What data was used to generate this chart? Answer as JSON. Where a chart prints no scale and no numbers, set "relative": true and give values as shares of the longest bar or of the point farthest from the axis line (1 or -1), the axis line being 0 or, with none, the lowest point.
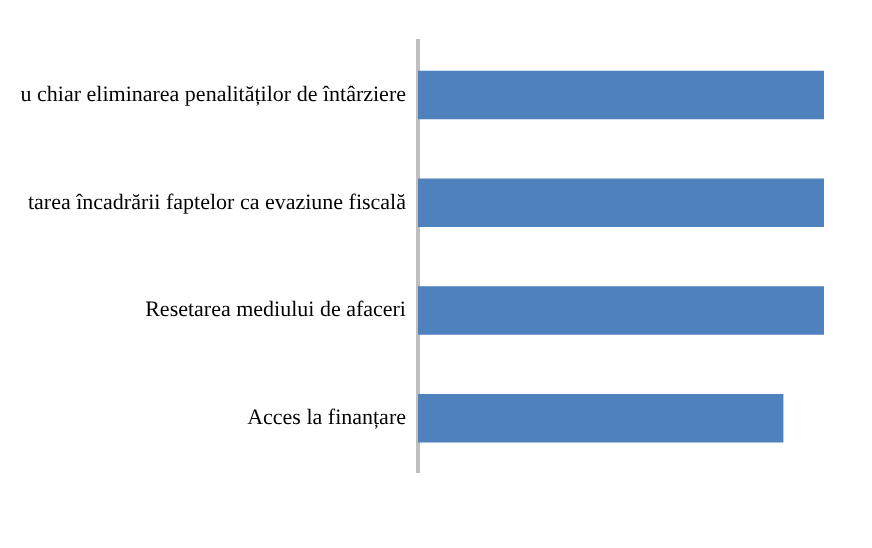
{
  "chart_data": {
    "type": "bar",
    "orientation": "horizontal",
    "relative": true,
    "categories": [
      "u chiar eliminarea penalităților de întârziere",
      "tarea încadrării faptelor ca evaziune fiscală",
      "Resetarea mediului de afaceri",
      "Acces la finanțare"
    ],
    "values": [
      1,
      1,
      1,
      0.9
    ],
    "color": "#4f81bd",
    "legend": false
  }
}
